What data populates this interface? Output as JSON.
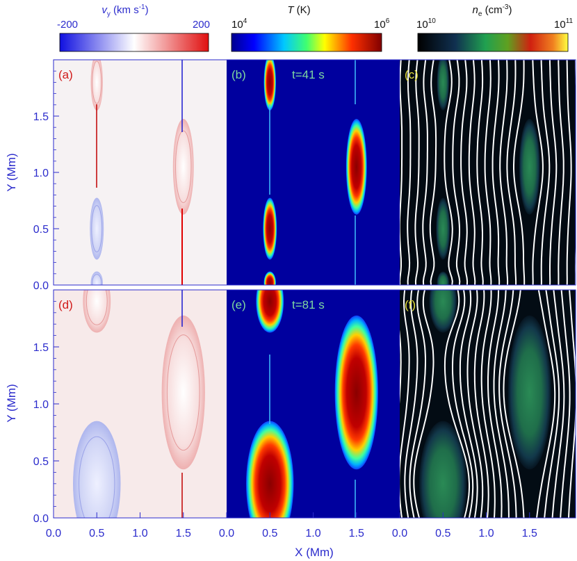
{
  "colorbars": [
    {
      "label_main": "v",
      "label_sub": "y",
      "label_unit": " (km s",
      "label_exp": "-1",
      "label_close": ")",
      "min_label": "-200",
      "max_label": "200",
      "color": "#2b2bcc",
      "scheme": "blue-white-red"
    },
    {
      "label_main": "T",
      "label_unit": " (K)",
      "min_base": "10",
      "min_exp": "4",
      "max_base": "10",
      "max_exp": "6",
      "color": "#111111",
      "scheme": "jet"
    },
    {
      "label_main": "n",
      "label_sub": "e",
      "label_unit": " (cm",
      "label_exp": "-3",
      "label_close": ")",
      "min_base": "10",
      "min_exp": "10",
      "max_base": "10",
      "max_exp": "11",
      "color": "#111111",
      "scheme": "density"
    }
  ],
  "panels": [
    {
      "id": "a",
      "label": "(a)",
      "label_color": "#d11a1a",
      "time": ""
    },
    {
      "id": "b",
      "label": "(b)",
      "label_color": "#7fd9a0",
      "time": "t=41  s"
    },
    {
      "id": "c",
      "label": "(c)",
      "label_color": "#e8e03a",
      "time": ""
    },
    {
      "id": "d",
      "label": "(d)",
      "label_color": "#d11a1a",
      "time": ""
    },
    {
      "id": "e",
      "label": "(e)",
      "label_color": "#7fd9a0",
      "time": "t=81  s"
    },
    {
      "id": "f",
      "label": "(f)",
      "label_color": "#e8e03a",
      "time": ""
    }
  ],
  "axes": {
    "xlabel": "X (Mm)",
    "ylabel": "Y (Mm)",
    "axis_color": "#2b2bcc",
    "x_ticks": [
      "0.0",
      "0.5",
      "1.0",
      "1.5"
    ],
    "x_ticks_first_panel_end": "2.0",
    "y_ticks": [
      "0.0",
      "0.5",
      "1.0",
      "1.5"
    ],
    "xlim": [
      0,
      2
    ],
    "ylim": [
      0,
      2
    ]
  },
  "chart_data": {
    "type": "heatmap",
    "title": "",
    "xlabel": "X (Mm)",
    "ylabel": "Y (Mm)",
    "xlim": [
      0,
      2
    ],
    "ylim": [
      0,
      2
    ],
    "rows": [
      {
        "time_s": 41,
        "panels": [
          "v_y",
          "T",
          "n_e"
        ]
      },
      {
        "time_s": 81,
        "panels": [
          "v_y",
          "T",
          "n_e"
        ]
      }
    ],
    "colorbar_ranges": {
      "v_y_km_s": [
        -200,
        200
      ],
      "T_K": [
        10000,
        1000000
      ],
      "n_e_cm3": [
        10000000000,
        100000000000
      ]
    },
    "plasmoids": [
      {
        "time_s": 41,
        "x": 0.5,
        "y": 1.8,
        "w": 0.14,
        "h": 0.5
      },
      {
        "time_s": 41,
        "x": 0.5,
        "y": 0.5,
        "w": 0.16,
        "h": 0.55
      },
      {
        "time_s": 41,
        "x": 1.5,
        "y": 1.05,
        "w": 0.24,
        "h": 0.85
      },
      {
        "time_s": 41,
        "x": 0.5,
        "y": 0.02,
        "w": 0.14,
        "h": 0.2
      },
      {
        "time_s": 81,
        "x": 0.5,
        "y": 1.9,
        "w": 0.32,
        "h": 0.55
      },
      {
        "time_s": 81,
        "x": 0.5,
        "y": 0.3,
        "w": 0.55,
        "h": 1.1
      },
      {
        "time_s": 81,
        "x": 1.5,
        "y": 1.1,
        "w": 0.5,
        "h": 1.35
      }
    ]
  }
}
